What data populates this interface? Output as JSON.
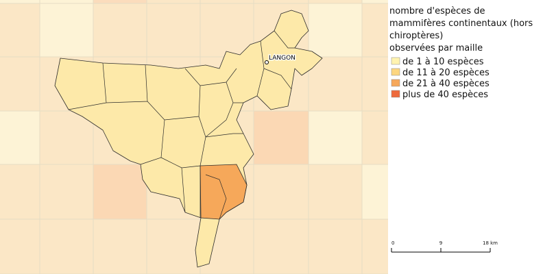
{
  "map": {
    "city_label": "LANGON",
    "legend": {
      "title_lines": [
        "nombre d'espèces de",
        "mammifères continentaux (hors",
        "chiroptères)",
        "observées par maille"
      ],
      "items": [
        {
          "label": "de 1 à 10 espèces",
          "color": "#fff3b0"
        },
        {
          "label": "de 11 à 20 espèces",
          "color": "#fcd680"
        },
        {
          "label": "de 21 à 40 espèces",
          "color": "#f6a85a"
        },
        {
          "label": "plus de 40 espèces",
          "color": "#ee6a3c"
        }
      ]
    },
    "scale_bar": {
      "labels": [
        "0",
        "9",
        "18 km"
      ]
    }
  }
}
